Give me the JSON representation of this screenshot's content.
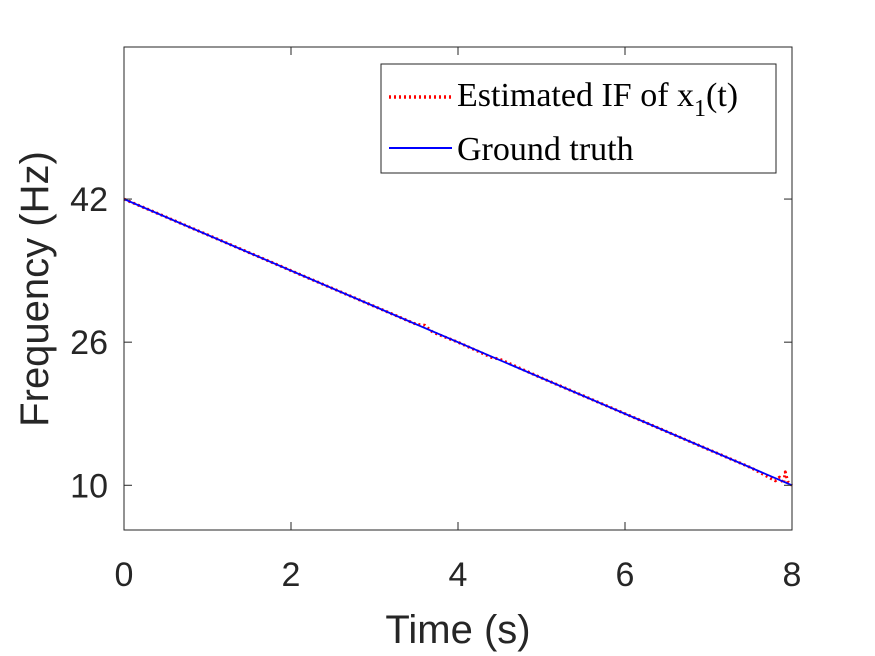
{
  "chart_data": {
    "type": "line",
    "title": "",
    "xlabel": "Time (s)",
    "ylabel": "Frequency (Hz)",
    "xlim": [
      0,
      8
    ],
    "ylim": [
      5,
      59
    ],
    "xticks": [
      0,
      2,
      4,
      6,
      8
    ],
    "yticks": [
      10,
      26,
      42
    ],
    "grid": false,
    "legend_position": "top-right",
    "series": [
      {
        "name": "Estimated IF of x(t)",
        "legend_main": "Estimated IF of x",
        "legend_sub": "1",
        "legend_tail": "(t)",
        "color": "#ff0000",
        "style": "dotted",
        "x": [
          0,
          0.5,
          1,
          1.5,
          2,
          2.5,
          3,
          3.5,
          3.6,
          3.7,
          4,
          4.4,
          4.5,
          5,
          5.5,
          6,
          6.5,
          7,
          7.5,
          7.8,
          7.85,
          7.9,
          7.92,
          7.95,
          8
        ],
        "y": [
          42,
          40,
          38,
          36,
          34,
          32,
          30,
          28,
          27.9,
          27.1,
          26,
          24.3,
          24.1,
          22,
          20,
          18,
          16,
          14,
          12,
          10.5,
          10.9,
          10.2,
          11.5,
          10.4,
          10
        ]
      },
      {
        "name": "Ground truth",
        "legend_main": "Ground truth",
        "color": "#0000ff",
        "style": "solid",
        "x": [
          0,
          8
        ],
        "y": [
          42,
          10
        ]
      }
    ]
  }
}
